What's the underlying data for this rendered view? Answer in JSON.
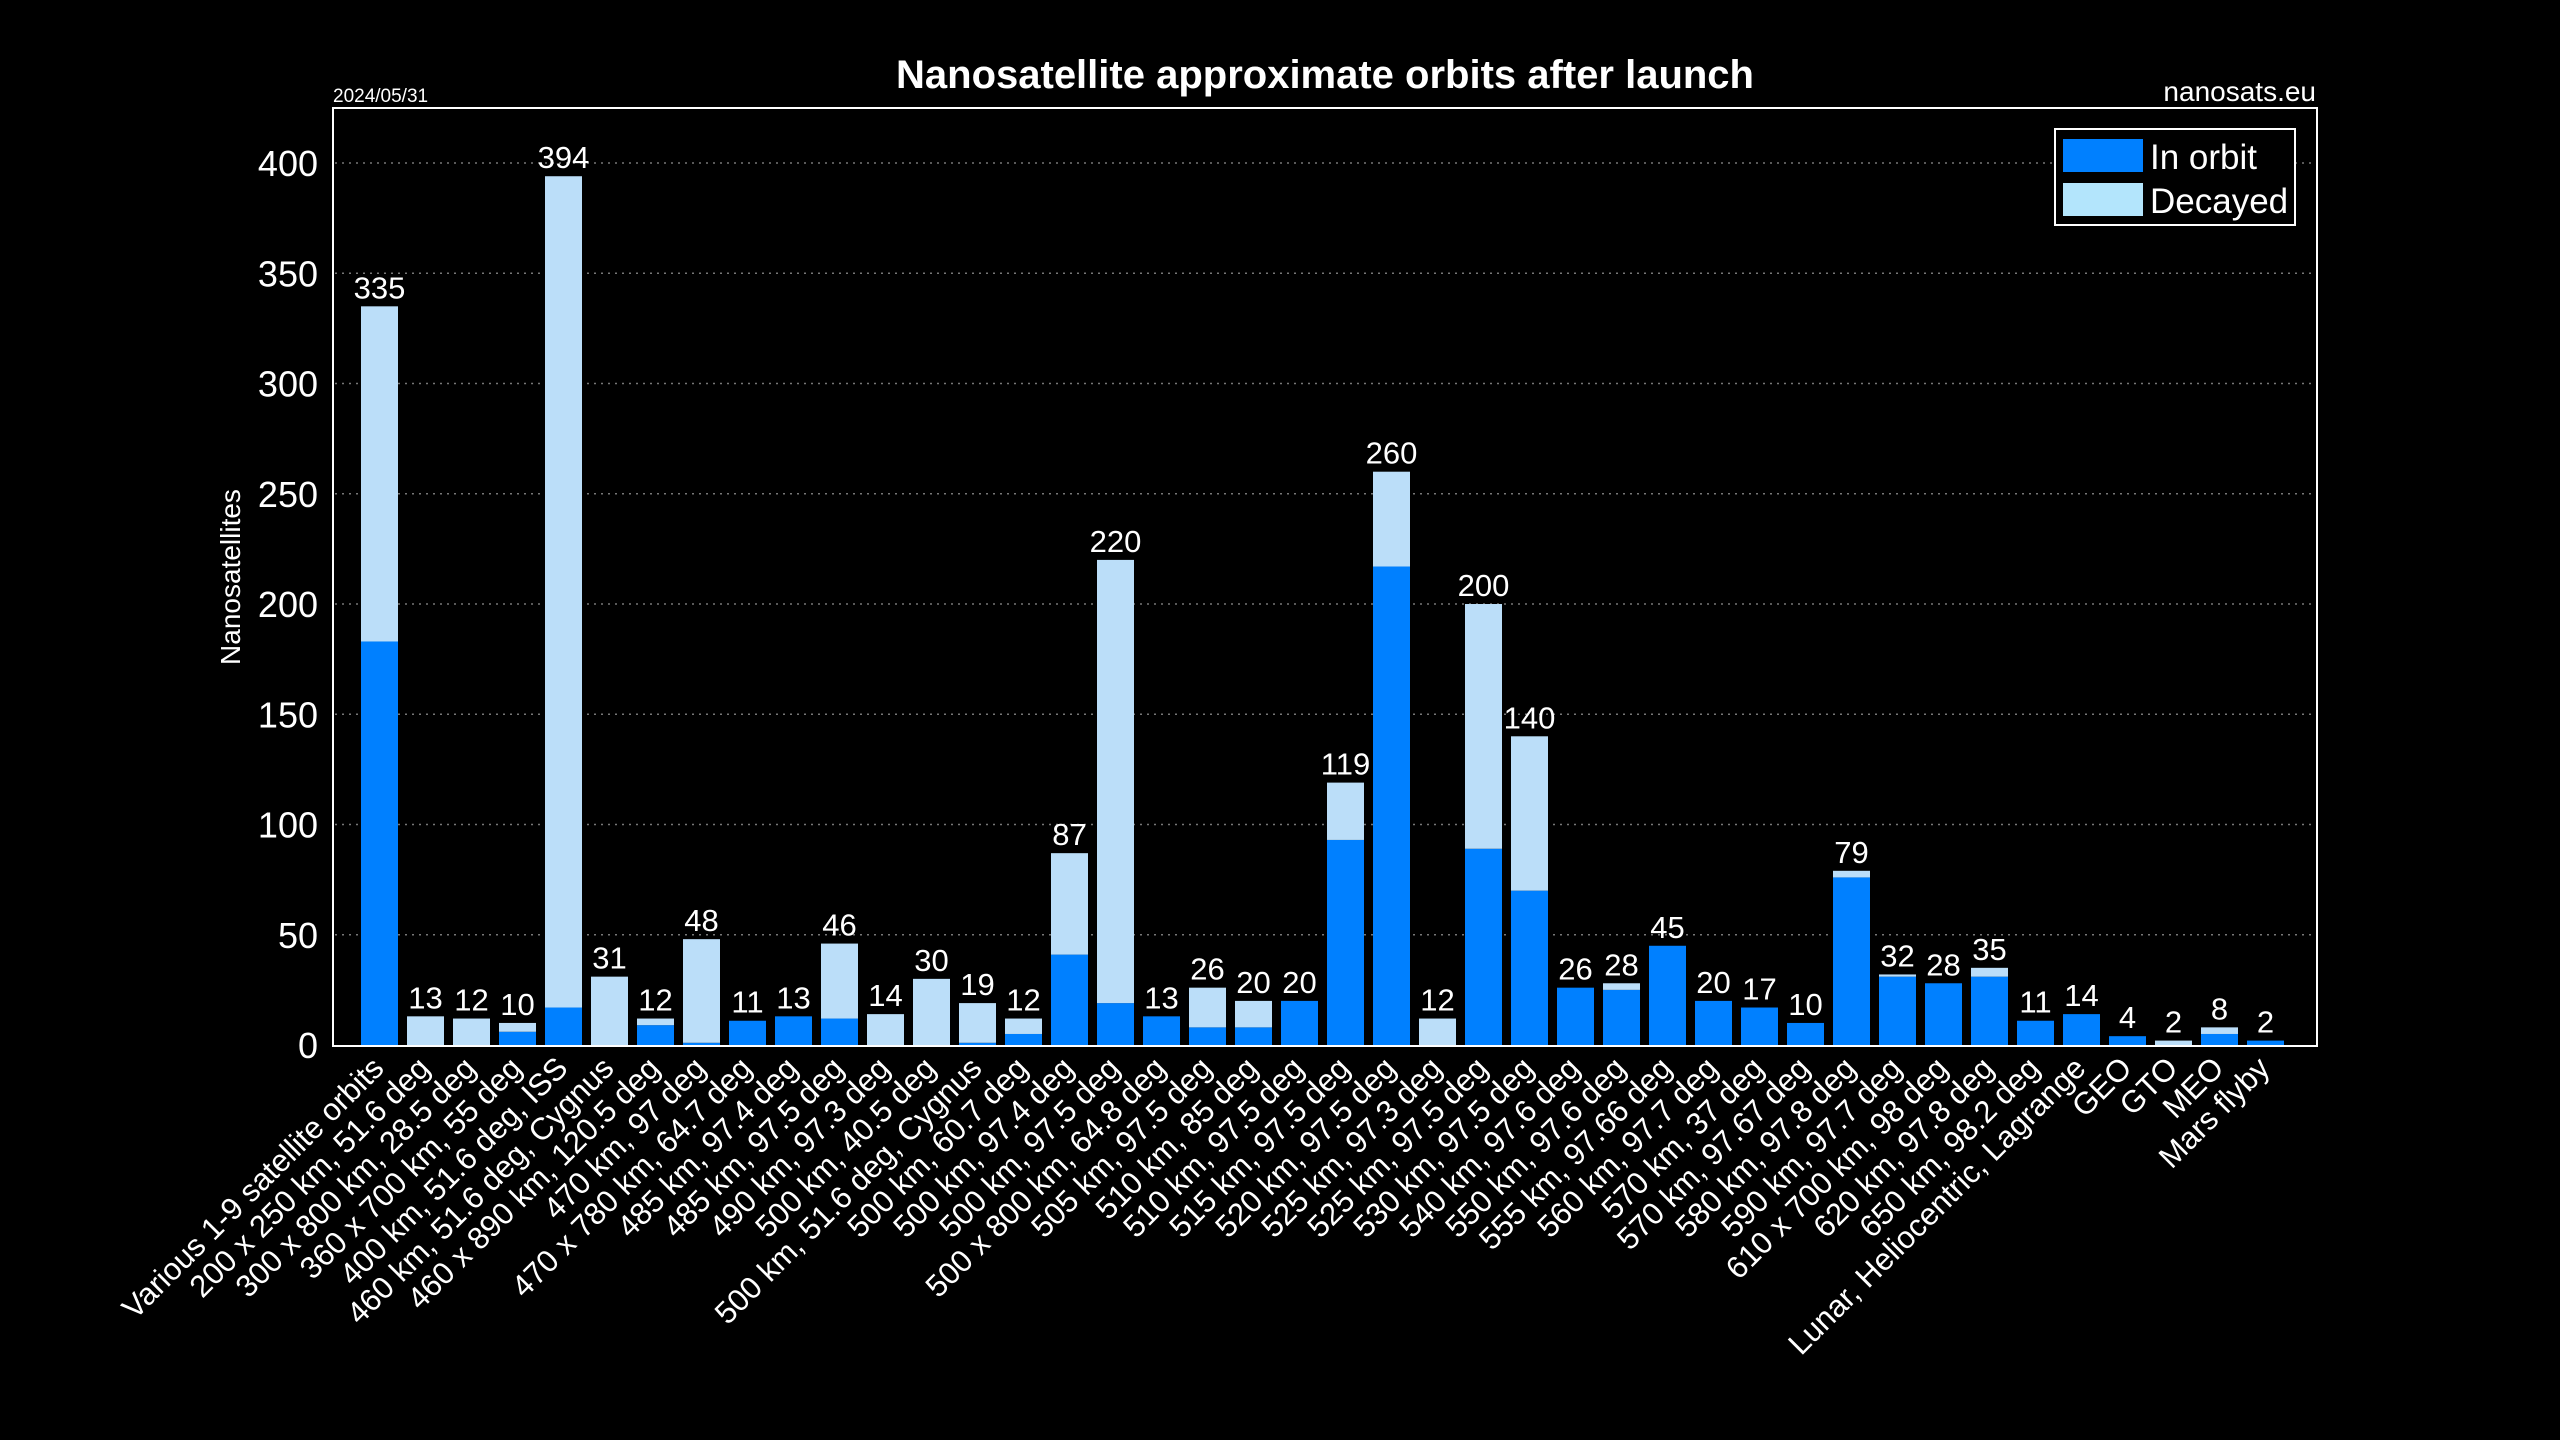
{
  "header": {
    "title": "Nanosatellite approximate orbits after launch",
    "date": "2024/05/31",
    "source": "nanosats.eu"
  },
  "colors": {
    "in_orbit": "#0080ff",
    "decayed": "#bbdef9",
    "legend_decayed": "#b3e5fc",
    "background": "#000000",
    "text": "#ffffff"
  },
  "chart_data": {
    "type": "bar",
    "stacked": true,
    "title": "Nanosatellite approximate orbits after launch",
    "xlabel": "",
    "ylabel": "Nanosatellites",
    "ylim": [
      0,
      420
    ],
    "yticks": [
      0,
      50,
      100,
      150,
      200,
      250,
      300,
      350,
      400
    ],
    "grid": "horizontal dotted",
    "legend": {
      "placement": "top-right",
      "entries": [
        "In orbit",
        "Decayed"
      ]
    },
    "categories": [
      "Various 1-9 satellite orbits",
      "200 x 250 km, 51.6 deg",
      "300 x 800 km, 28.5 deg",
      "360 x 700 km, 55 deg",
      "400 km, 51.6 deg, ISS",
      "460 km, 51.6 deg, Cygnus",
      "460 x 890 km, 120.5 deg",
      "470 km, 97 deg",
      "470 x 780 km, 64.7 deg",
      "485 km, 97.4 deg",
      "485 km, 97.5 deg",
      "490 km, 97.3 deg",
      "500 km, 40.5 deg",
      "500 km, 51.6 deg, Cygnus",
      "500 km, 60.7 deg",
      "500 km, 97.4 deg",
      "500 km, 97.5 deg",
      "500 x 800 km, 64.8 deg",
      "505 km, 97.5 deg",
      "510 km, 85 deg",
      "510 km, 97.5 deg",
      "515 km, 97.5 deg",
      "520 km, 97.5 deg",
      "525 km, 97.3 deg",
      "525 km, 97.5 deg",
      "530 km, 97.5 deg",
      "540 km, 97.6 deg",
      "550 km, 97.6 deg",
      "555 km, 97.66 deg",
      "560 km, 97.7 deg",
      "570 km, 37 deg",
      "570 km, 97.67 deg",
      "580 km, 97.8 deg",
      "590 km, 97.7 deg",
      "610 x 700 km, 98 deg",
      "620 km, 97.8 deg",
      "650 km, 98.2 deg",
      "Lunar, Heliocentric, Lagrange",
      "GEO",
      "GTO",
      "MEO",
      "Mars flyby"
    ],
    "totals": [
      335,
      13,
      12,
      10,
      394,
      31,
      12,
      48,
      11,
      13,
      46,
      14,
      30,
      19,
      12,
      87,
      220,
      13,
      26,
      20,
      20,
      119,
      260,
      12,
      200,
      140,
      26,
      28,
      45,
      20,
      17,
      10,
      79,
      32,
      28,
      35,
      11,
      14,
      4,
      2,
      8,
      2
    ],
    "series": [
      {
        "name": "In orbit",
        "values": [
          183,
          0,
          0,
          6,
          17,
          0,
          9,
          1,
          11,
          13,
          12,
          0,
          0,
          1,
          5,
          41,
          19,
          13,
          8,
          8,
          20,
          93,
          217,
          0,
          89,
          70,
          26,
          25,
          45,
          20,
          17,
          10,
          76,
          31,
          28,
          31,
          11,
          14,
          4,
          0,
          5,
          2
        ]
      },
      {
        "name": "Decayed",
        "values": [
          152,
          13,
          12,
          4,
          377,
          31,
          3,
          47,
          0,
          0,
          34,
          14,
          30,
          18,
          7,
          46,
          201,
          0,
          18,
          12,
          0,
          26,
          43,
          12,
          111,
          70,
          0,
          3,
          0,
          0,
          0,
          0,
          3,
          1,
          0,
          4,
          0,
          0,
          0,
          2,
          3,
          0
        ]
      }
    ]
  }
}
